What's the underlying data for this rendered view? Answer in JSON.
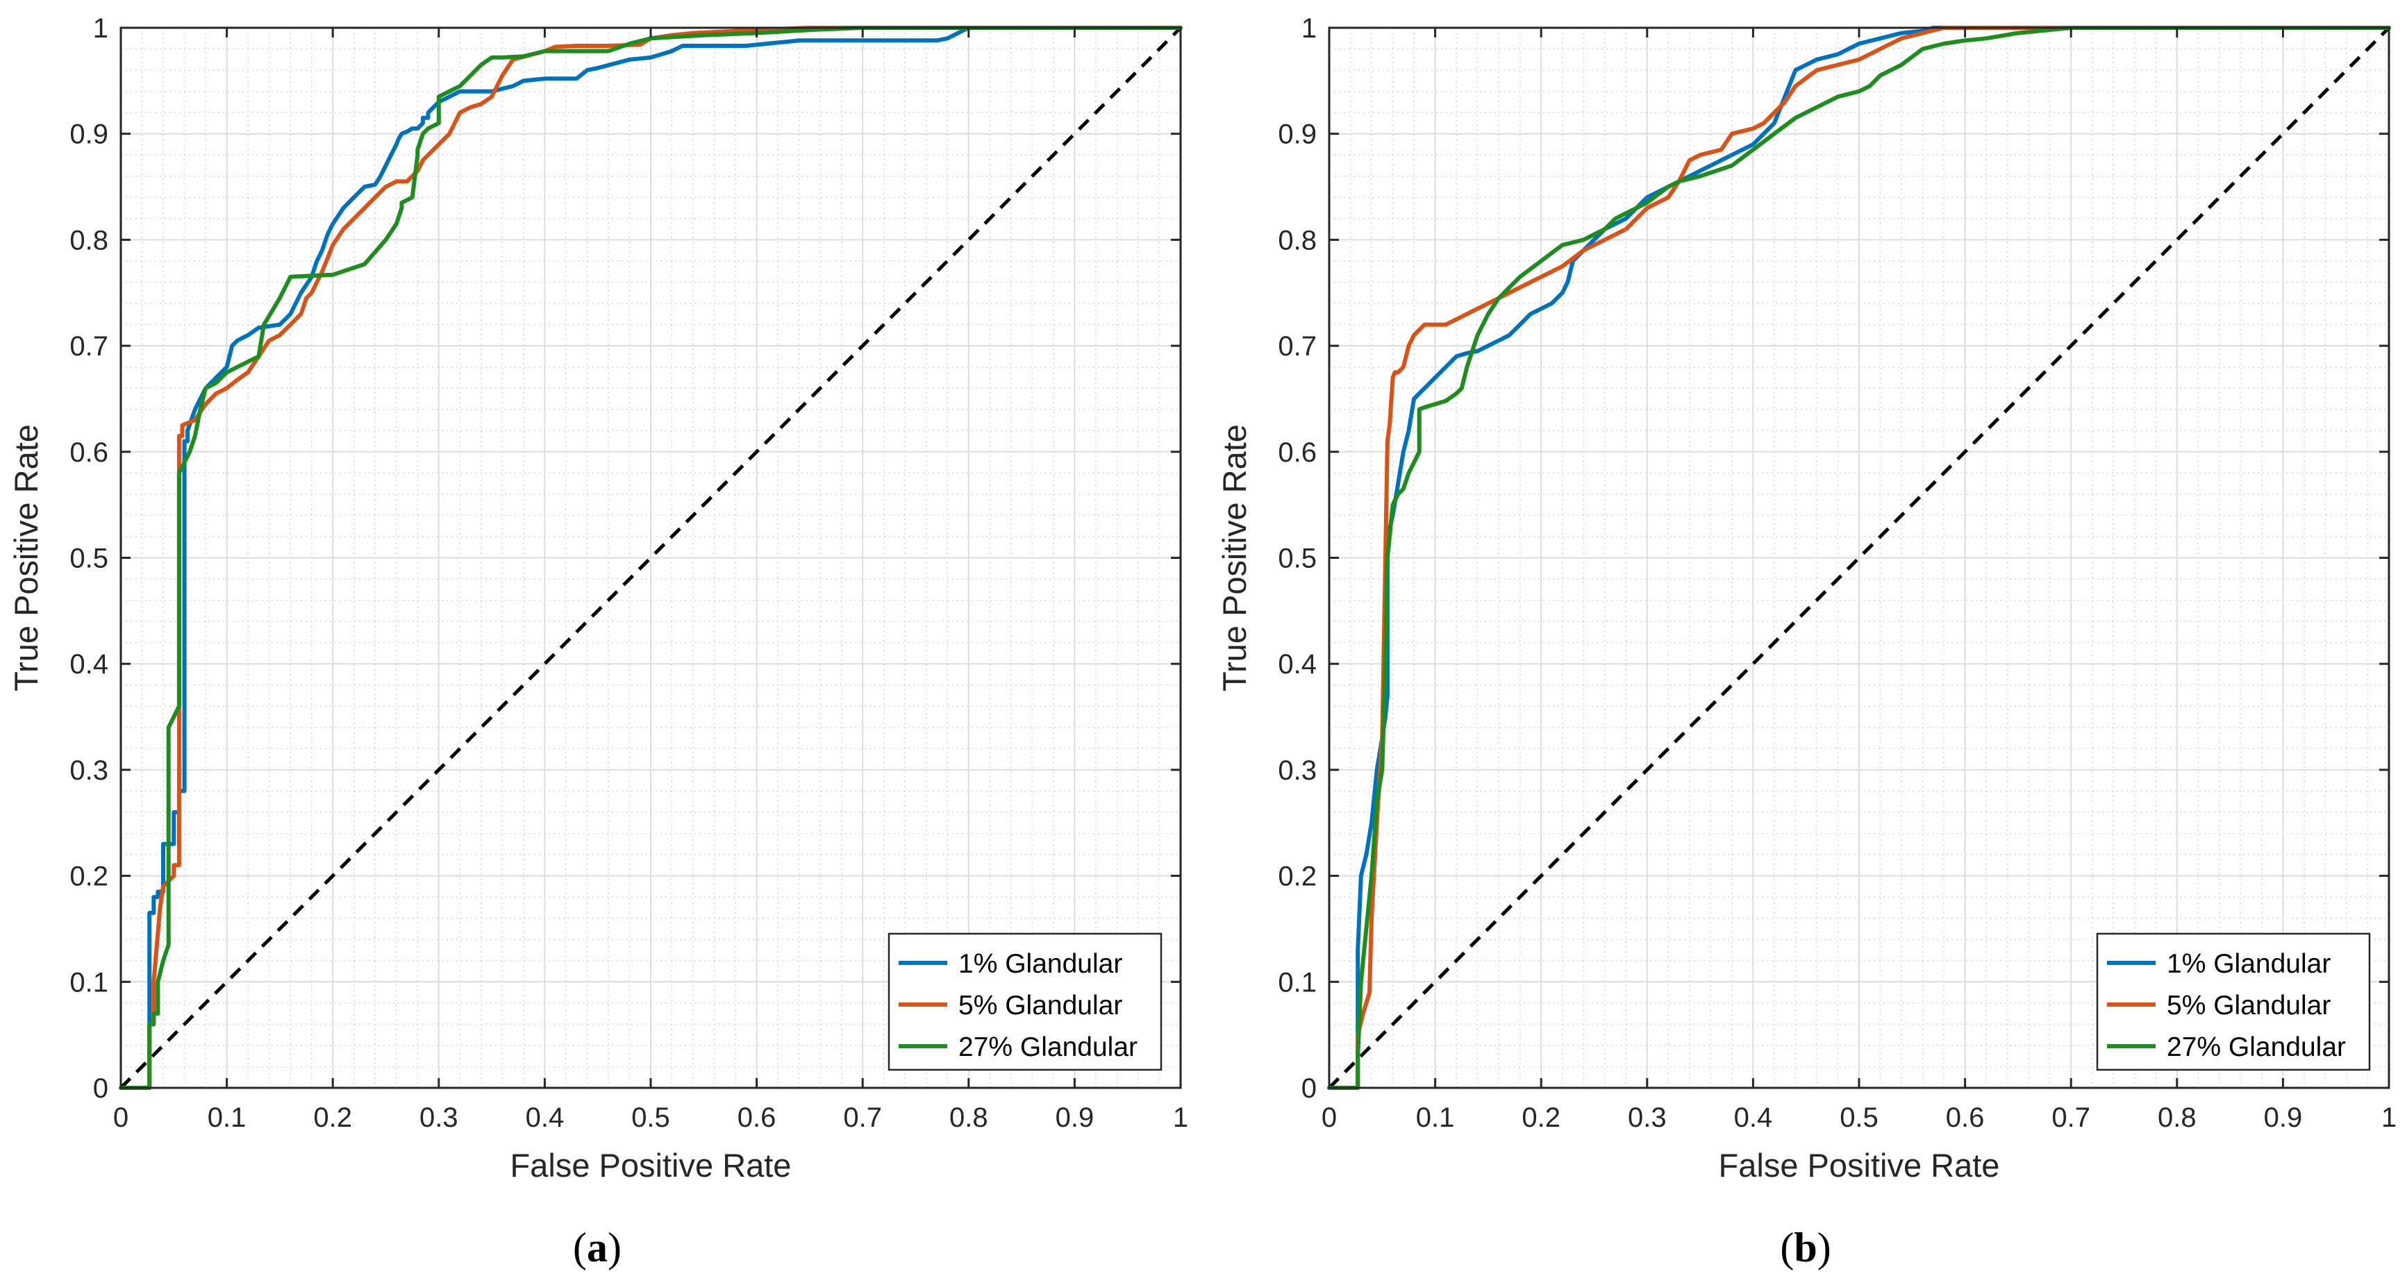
{
  "chart_data": [
    {
      "type": "line",
      "panel_label": "(a)",
      "panel_letter": "a",
      "xlabel": "False Positive Rate",
      "ylabel": "True Positive Rate",
      "xlim": [
        0,
        1
      ],
      "ylim": [
        0,
        1
      ],
      "grid": true,
      "minor_grid": true,
      "legend_location": "bottom-right",
      "xticks": [
        "0",
        "0.1",
        "0.2",
        "0.3",
        "0.4",
        "0.5",
        "0.6",
        "0.7",
        "0.8",
        "0.9",
        "1"
      ],
      "yticks": [
        "0",
        "0.1",
        "0.2",
        "0.3",
        "0.4",
        "0.5",
        "0.6",
        "0.7",
        "0.8",
        "0.9",
        "1"
      ],
      "diagonal": {
        "x": [
          0,
          1
        ],
        "y": [
          0,
          1
        ],
        "style": "dashed",
        "color": "#000000"
      },
      "series": [
        {
          "name": "1% Glandular",
          "color": "#0072BD",
          "x": [
            0,
            0.027,
            0.027,
            0.031,
            0.031,
            0.035,
            0.035,
            0.04,
            0.04,
            0.05,
            0.05,
            0.055,
            0.055,
            0.06,
            0.06,
            0.063,
            0.063,
            0.07,
            0.08,
            0.09,
            0.1,
            0.105,
            0.11,
            0.12,
            0.13,
            0.15,
            0.16,
            0.17,
            0.18,
            0.185,
            0.19,
            0.195,
            0.2,
            0.21,
            0.22,
            0.23,
            0.24,
            0.245,
            0.25,
            0.255,
            0.26,
            0.262,
            0.265,
            0.27,
            0.275,
            0.28,
            0.285,
            0.285,
            0.29,
            0.29,
            0.3,
            0.31,
            0.32,
            0.34,
            0.35,
            0.37,
            0.38,
            0.4,
            0.43,
            0.44,
            0.45,
            0.48,
            0.5,
            0.51,
            0.52,
            0.53,
            0.56,
            0.59,
            0.61,
            0.64,
            0.69,
            0.72,
            0.77,
            0.78,
            0.79,
            0.8,
            0.81,
            0.85,
            0.9,
            0.95,
            1.0
          ],
          "y": [
            0,
            0,
            0.165,
            0.165,
            0.18,
            0.18,
            0.185,
            0.185,
            0.23,
            0.23,
            0.26,
            0.26,
            0.28,
            0.28,
            0.61,
            0.61,
            0.62,
            0.64,
            0.66,
            0.67,
            0.68,
            0.7,
            0.705,
            0.71,
            0.717,
            0.72,
            0.73,
            0.75,
            0.765,
            0.78,
            0.79,
            0.805,
            0.815,
            0.83,
            0.84,
            0.85,
            0.852,
            0.86,
            0.87,
            0.88,
            0.89,
            0.895,
            0.9,
            0.902,
            0.905,
            0.905,
            0.91,
            0.915,
            0.915,
            0.92,
            0.93,
            0.935,
            0.94,
            0.94,
            0.94,
            0.945,
            0.95,
            0.952,
            0.952,
            0.96,
            0.962,
            0.97,
            0.972,
            0.975,
            0.978,
            0.983,
            0.983,
            0.983,
            0.985,
            0.988,
            0.988,
            0.988,
            0.988,
            0.99,
            0.995,
            1.0,
            1.0,
            1.0,
            1.0,
            1.0,
            1.0
          ]
        },
        {
          "name": "5% Glandular",
          "color": "#D95319",
          "x": [
            0,
            0.027,
            0.027,
            0.031,
            0.031,
            0.037,
            0.04,
            0.05,
            0.05,
            0.055,
            0.055,
            0.058,
            0.058,
            0.07,
            0.08,
            0.09,
            0.1,
            0.11,
            0.12,
            0.13,
            0.14,
            0.15,
            0.16,
            0.17,
            0.175,
            0.18,
            0.19,
            0.2,
            0.21,
            0.22,
            0.23,
            0.24,
            0.25,
            0.26,
            0.27,
            0.28,
            0.285,
            0.29,
            0.3,
            0.31,
            0.32,
            0.33,
            0.34,
            0.35,
            0.36,
            0.37,
            0.4,
            0.41,
            0.43,
            0.46,
            0.49,
            0.5,
            0.52,
            0.54,
            0.56,
            0.6,
            0.65,
            0.7,
            0.75,
            0.8,
            0.85,
            0.9,
            0.95,
            1.0
          ],
          "y": [
            0,
            0,
            0.06,
            0.06,
            0.1,
            0.17,
            0.19,
            0.2,
            0.21,
            0.21,
            0.615,
            0.615,
            0.625,
            0.63,
            0.645,
            0.655,
            0.66,
            0.668,
            0.675,
            0.69,
            0.705,
            0.71,
            0.72,
            0.73,
            0.745,
            0.75,
            0.77,
            0.795,
            0.81,
            0.82,
            0.83,
            0.84,
            0.85,
            0.855,
            0.855,
            0.865,
            0.875,
            0.88,
            0.89,
            0.9,
            0.92,
            0.925,
            0.928,
            0.935,
            0.955,
            0.97,
            0.978,
            0.982,
            0.983,
            0.983,
            0.984,
            0.99,
            0.993,
            0.995,
            0.996,
            0.998,
            1.0,
            1.0,
            1.0,
            1.0,
            1.0,
            1.0,
            1.0,
            1.0
          ]
        },
        {
          "name": "27% Glandular",
          "color": "#1E8C1E",
          "x": [
            0,
            0.027,
            0.027,
            0.031,
            0.031,
            0.035,
            0.035,
            0.04,
            0.045,
            0.045,
            0.055,
            0.055,
            0.065,
            0.07,
            0.075,
            0.08,
            0.09,
            0.1,
            0.11,
            0.12,
            0.13,
            0.135,
            0.15,
            0.16,
            0.2,
            0.23,
            0.25,
            0.26,
            0.265,
            0.265,
            0.275,
            0.28,
            0.28,
            0.285,
            0.29,
            0.3,
            0.3,
            0.31,
            0.32,
            0.33,
            0.34,
            0.35,
            0.36,
            0.38,
            0.4,
            0.45,
            0.46,
            0.48,
            0.5,
            0.55,
            0.6,
            0.65,
            0.7,
            0.75,
            0.8,
            0.85,
            0.9,
            0.95,
            1.0
          ],
          "y": [
            0,
            0,
            0.06,
            0.06,
            0.07,
            0.07,
            0.1,
            0.12,
            0.135,
            0.34,
            0.36,
            0.58,
            0.6,
            0.615,
            0.64,
            0.66,
            0.665,
            0.675,
            0.68,
            0.685,
            0.69,
            0.72,
            0.745,
            0.765,
            0.767,
            0.777,
            0.8,
            0.815,
            0.83,
            0.835,
            0.84,
            0.88,
            0.885,
            0.9,
            0.905,
            0.91,
            0.935,
            0.94,
            0.945,
            0.955,
            0.965,
            0.972,
            0.972,
            0.973,
            0.978,
            0.978,
            0.978,
            0.985,
            0.99,
            0.993,
            0.995,
            0.998,
            1.0,
            1.0,
            1.0,
            1.0,
            1.0,
            1.0,
            1.0
          ]
        }
      ]
    },
    {
      "type": "line",
      "panel_label": "(b)",
      "panel_letter": "b",
      "xlabel": "False Positive Rate",
      "ylabel": "True Positive Rate",
      "xlim": [
        0,
        1
      ],
      "ylim": [
        0,
        1
      ],
      "grid": true,
      "minor_grid": true,
      "legend_location": "bottom-right",
      "xticks": [
        "0",
        "0.1",
        "0.2",
        "0.3",
        "0.4",
        "0.5",
        "0.6",
        "0.7",
        "0.8",
        "0.9",
        "1"
      ],
      "yticks": [
        "0",
        "0.1",
        "0.2",
        "0.3",
        "0.4",
        "0.5",
        "0.6",
        "0.7",
        "0.8",
        "0.9",
        "1"
      ],
      "diagonal": {
        "x": [
          0,
          1
        ],
        "y": [
          0,
          1
        ],
        "style": "dashed",
        "color": "#000000"
      },
      "series": [
        {
          "name": "1% Glandular",
          "color": "#0072BD",
          "x": [
            0,
            0.027,
            0.027,
            0.03,
            0.035,
            0.04,
            0.045,
            0.05,
            0.053,
            0.055,
            0.055,
            0.06,
            0.065,
            0.07,
            0.075,
            0.08,
            0.085,
            0.09,
            0.1,
            0.11,
            0.12,
            0.13,
            0.14,
            0.15,
            0.16,
            0.17,
            0.18,
            0.19,
            0.2,
            0.21,
            0.22,
            0.225,
            0.23,
            0.24,
            0.25,
            0.26,
            0.27,
            0.28,
            0.29,
            0.3,
            0.32,
            0.34,
            0.35,
            0.38,
            0.4,
            0.42,
            0.44,
            0.46,
            0.48,
            0.5,
            0.52,
            0.54,
            0.56,
            0.57,
            0.6,
            0.65,
            0.7,
            0.75,
            0.8,
            0.85,
            0.9,
            0.95,
            1.0
          ],
          "y": [
            0,
            0,
            0.13,
            0.2,
            0.22,
            0.25,
            0.3,
            0.33,
            0.35,
            0.37,
            0.52,
            0.54,
            0.57,
            0.6,
            0.62,
            0.65,
            0.655,
            0.66,
            0.67,
            0.68,
            0.69,
            0.693,
            0.695,
            0.7,
            0.705,
            0.71,
            0.72,
            0.73,
            0.735,
            0.74,
            0.75,
            0.76,
            0.78,
            0.79,
            0.8,
            0.81,
            0.815,
            0.82,
            0.83,
            0.84,
            0.85,
            0.86,
            0.865,
            0.88,
            0.89,
            0.91,
            0.96,
            0.97,
            0.975,
            0.985,
            0.99,
            0.995,
            0.997,
            1.0,
            1.0,
            1.0,
            1.0,
            1.0,
            1.0,
            1.0,
            1.0,
            1.0,
            1.0
          ]
        },
        {
          "name": "5% Glandular",
          "color": "#D95319",
          "x": [
            0,
            0.027,
            0.027,
            0.032,
            0.038,
            0.04,
            0.045,
            0.05,
            0.055,
            0.057,
            0.06,
            0.062,
            0.065,
            0.07,
            0.075,
            0.08,
            0.09,
            0.1,
            0.11,
            0.12,
            0.14,
            0.16,
            0.18,
            0.2,
            0.22,
            0.24,
            0.26,
            0.27,
            0.28,
            0.3,
            0.32,
            0.33,
            0.34,
            0.35,
            0.37,
            0.38,
            0.4,
            0.41,
            0.43,
            0.44,
            0.46,
            0.48,
            0.5,
            0.52,
            0.54,
            0.56,
            0.58,
            0.6,
            0.65,
            0.7,
            0.75,
            0.8,
            0.85,
            0.9,
            0.95,
            1.0
          ],
          "y": [
            0,
            0,
            0.05,
            0.07,
            0.09,
            0.16,
            0.25,
            0.33,
            0.61,
            0.625,
            0.67,
            0.675,
            0.675,
            0.68,
            0.7,
            0.71,
            0.72,
            0.72,
            0.72,
            0.725,
            0.735,
            0.745,
            0.755,
            0.765,
            0.775,
            0.79,
            0.8,
            0.805,
            0.81,
            0.83,
            0.84,
            0.855,
            0.875,
            0.88,
            0.885,
            0.9,
            0.905,
            0.91,
            0.93,
            0.945,
            0.96,
            0.965,
            0.97,
            0.98,
            0.99,
            0.995,
            1.0,
            1.0,
            1.0,
            1.0,
            1.0,
            1.0,
            1.0,
            1.0,
            1.0,
            1.0
          ]
        },
        {
          "name": "27% Glandular",
          "color": "#1E8C1E",
          "x": [
            0,
            0.027,
            0.027,
            0.03,
            0.035,
            0.04,
            0.045,
            0.05,
            0.053,
            0.055,
            0.06,
            0.065,
            0.07,
            0.075,
            0.08,
            0.085,
            0.085,
            0.09,
            0.1,
            0.11,
            0.12,
            0.125,
            0.13,
            0.14,
            0.15,
            0.16,
            0.18,
            0.2,
            0.22,
            0.24,
            0.26,
            0.27,
            0.28,
            0.3,
            0.32,
            0.33,
            0.35,
            0.38,
            0.4,
            0.42,
            0.44,
            0.46,
            0.48,
            0.5,
            0.51,
            0.52,
            0.54,
            0.56,
            0.58,
            0.6,
            0.62,
            0.65,
            0.7,
            0.75,
            0.8,
            0.85,
            0.9,
            0.95,
            1.0
          ],
          "y": [
            0,
            0,
            0.03,
            0.1,
            0.15,
            0.2,
            0.27,
            0.3,
            0.4,
            0.5,
            0.55,
            0.56,
            0.565,
            0.58,
            0.59,
            0.6,
            0.64,
            0.642,
            0.645,
            0.648,
            0.655,
            0.66,
            0.68,
            0.71,
            0.73,
            0.745,
            0.765,
            0.78,
            0.795,
            0.8,
            0.81,
            0.82,
            0.825,
            0.835,
            0.85,
            0.855,
            0.86,
            0.87,
            0.885,
            0.9,
            0.915,
            0.925,
            0.935,
            0.94,
            0.945,
            0.955,
            0.965,
            0.98,
            0.985,
            0.988,
            0.99,
            0.995,
            1.0,
            1.0,
            1.0,
            1.0,
            1.0,
            1.0,
            1.0
          ]
        }
      ]
    }
  ]
}
